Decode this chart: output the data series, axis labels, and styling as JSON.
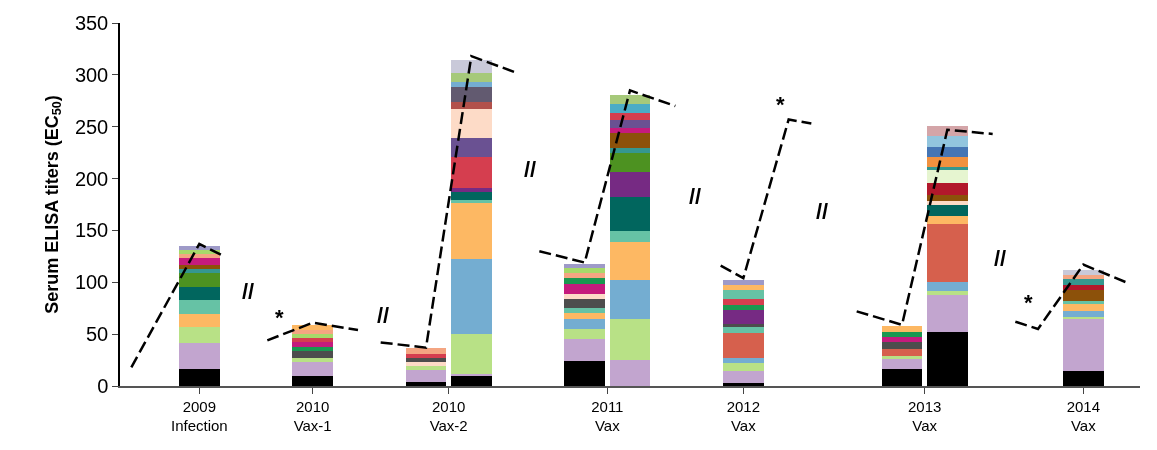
{
  "chart_data": {
    "type": "bar",
    "stacked": true,
    "ylabel": "Serum ELISA titers (EC$_{50}$)",
    "categories": [
      null,
      null,
      null,
      "2009\nInfection",
      null,
      null,
      null,
      null,
      "2010\nVax-1",
      null,
      null,
      null,
      null,
      null,
      "2010\nVax-2",
      null,
      null,
      null,
      null,
      null,
      null,
      "2011\nVax",
      null,
      null,
      null,
      null,
      null,
      "2012\nVax",
      null,
      null,
      null,
      null,
      null,
      null,
      null,
      "2013\nVax",
      null,
      null,
      null,
      null,
      null,
      null,
      "2014\nVax",
      null,
      null
    ],
    "ylim": [
      0,
      350
    ],
    "yticks": [
      0,
      50,
      100,
      150,
      200,
      250,
      300,
      350
    ],
    "series": [
      {
        "values": [
          null,
          null,
          null,
          16,
          null,
          null,
          null,
          null,
          10,
          null,
          null,
          null,
          null,
          4,
          null,
          10,
          null,
          null,
          null,
          null,
          24,
          null,
          25,
          null,
          null,
          null,
          null,
          3,
          null,
          null,
          null,
          null,
          null,
          null,
          16,
          null,
          52,
          null,
          null,
          null,
          null,
          null,
          14,
          null,
          null
        ],
        "colors": [
          null,
          null,
          null,
          "#000000",
          null,
          null,
          null,
          null,
          "#000000",
          null,
          null,
          null,
          null,
          "#000000",
          null,
          "#000000",
          null,
          null,
          null,
          null,
          "#000000",
          null,
          "#c2a5cf",
          null,
          null,
          null,
          null,
          "#000000",
          null,
          null,
          null,
          null,
          null,
          null,
          "#000000",
          null,
          "#000000",
          null,
          null,
          null,
          null,
          null,
          "#000000",
          null,
          null
        ]
      },
      {
        "values": [
          null,
          null,
          null,
          25,
          null,
          null,
          null,
          null,
          13,
          null,
          null,
          null,
          null,
          11,
          null,
          2,
          null,
          null,
          null,
          null,
          21,
          null,
          40,
          null,
          null,
          null,
          null,
          11,
          null,
          null,
          null,
          null,
          null,
          null,
          10,
          null,
          36,
          null,
          null,
          null,
          null,
          null,
          51,
          null,
          null
        ],
        "colors": [
          null,
          null,
          null,
          "#c2a5cf",
          null,
          null,
          null,
          null,
          "#c2a5cf",
          null,
          null,
          null,
          null,
          "#c2a5cf",
          null,
          "#c2a5cf",
          null,
          null,
          null,
          null,
          "#c2a5cf",
          null,
          "#b8e186",
          null,
          null,
          null,
          null,
          "#c2a5cf",
          null,
          null,
          null,
          null,
          null,
          null,
          "#c2a5cf",
          null,
          "#c2a5cf",
          null,
          null,
          null,
          null,
          null,
          "#c2a5cf",
          null,
          null
        ]
      },
      {
        "values": [
          null,
          null,
          null,
          16,
          null,
          null,
          null,
          null,
          4,
          null,
          null,
          null,
          null,
          4,
          null,
          38,
          null,
          null,
          null,
          null,
          10,
          null,
          37,
          null,
          null,
          null,
          null,
          8,
          null,
          null,
          null,
          null,
          null,
          null,
          3,
          null,
          4,
          null,
          null,
          null,
          null,
          null,
          2,
          null,
          null
        ],
        "colors": [
          null,
          null,
          null,
          "#b8e186",
          null,
          null,
          null,
          null,
          "#b8e186",
          null,
          null,
          null,
          null,
          "#b8e186",
          null,
          "#b8e186",
          null,
          null,
          null,
          null,
          "#b8e186",
          null,
          "#74add1",
          null,
          null,
          null,
          null,
          "#b8e186",
          null,
          null,
          null,
          null,
          null,
          null,
          "#b8e186",
          null,
          "#b8e186",
          null,
          null,
          null,
          null,
          null,
          "#b8e186",
          null,
          null
        ]
      },
      {
        "values": [
          null,
          null,
          null,
          12,
          null,
          null,
          null,
          null,
          7,
          null,
          null,
          null,
          null,
          4,
          null,
          72,
          null,
          null,
          null,
          null,
          10,
          null,
          37,
          null,
          null,
          null,
          null,
          5,
          null,
          null,
          null,
          null,
          null,
          null,
          7,
          null,
          8,
          null,
          null,
          null,
          null,
          null,
          5,
          null,
          null
        ],
        "colors": [
          null,
          null,
          null,
          "#fdb863",
          null,
          null,
          null,
          null,
          "#4d4d4d",
          null,
          null,
          null,
          null,
          "#fddbc7",
          null,
          "#74add1",
          null,
          null,
          null,
          null,
          "#74add1",
          null,
          "#fdb863",
          null,
          null,
          null,
          null,
          "#74add1",
          null,
          null,
          null,
          null,
          null,
          null,
          "#d6604d",
          null,
          "#74add1",
          null,
          null,
          null,
          null,
          null,
          "#74add1",
          null,
          null
        ]
      },
      {
        "values": [
          null,
          null,
          null,
          14,
          null,
          null,
          null,
          null,
          4,
          null,
          null,
          null,
          null,
          4,
          null,
          54,
          null,
          null,
          null,
          null,
          5,
          null,
          10,
          null,
          null,
          null,
          null,
          24,
          null,
          null,
          null,
          null,
          null,
          null,
          6,
          null,
          56,
          null,
          null,
          null,
          null,
          null,
          7,
          null,
          null
        ],
        "colors": [
          null,
          null,
          null,
          "#66c2a5",
          null,
          null,
          null,
          null,
          "#1a9850",
          null,
          null,
          null,
          null,
          "#4d4d4d",
          null,
          "#fdb863",
          null,
          null,
          null,
          null,
          "#fdb863",
          null,
          "#66c2a5",
          null,
          null,
          null,
          null,
          "#d6604d",
          null,
          null,
          null,
          null,
          null,
          null,
          "#4d4d4d",
          null,
          "#d6604d",
          null,
          null,
          null,
          null,
          null,
          "#fdb863",
          null,
          null
        ]
      },
      {
        "values": [
          null,
          null,
          null,
          12,
          null,
          null,
          null,
          null,
          4,
          null,
          null,
          null,
          null,
          4,
          null,
          3,
          null,
          null,
          null,
          null,
          5,
          null,
          33,
          null,
          null,
          null,
          null,
          6,
          null,
          null,
          null,
          null,
          null,
          null,
          5,
          null,
          8,
          null,
          null,
          null,
          null,
          null,
          3,
          null,
          null
        ],
        "colors": [
          null,
          null,
          null,
          "#01665e",
          null,
          null,
          null,
          null,
          "#c51b7d",
          null,
          null,
          null,
          null,
          "#d53e4f",
          null,
          "#66c2a5",
          null,
          null,
          null,
          null,
          "#66c2a5",
          null,
          "#01665e",
          null,
          null,
          null,
          null,
          "#66c2a5",
          null,
          null,
          null,
          null,
          null,
          null,
          "#c51b7d",
          null,
          "#fdb863",
          null,
          null,
          null,
          null,
          null,
          "#66c2a5",
          null,
          null
        ]
      },
      {
        "values": [
          null,
          null,
          null,
          14,
          null,
          null,
          null,
          null,
          4,
          null,
          null,
          null,
          null,
          6,
          null,
          8,
          null,
          null,
          null,
          null,
          9,
          null,
          24,
          null,
          null,
          null,
          null,
          3,
          null,
          null,
          null,
          null,
          null,
          null,
          5,
          null,
          11,
          null,
          null,
          null,
          null,
          null,
          11,
          null,
          null
        ],
        "colors": [
          null,
          null,
          null,
          "#4d9221",
          null,
          null,
          null,
          null,
          "#d53e4f",
          null,
          null,
          null,
          null,
          "#f4a582",
          null,
          "#01665e",
          null,
          null,
          null,
          null,
          "#4d4d4d",
          null,
          "#762a83",
          null,
          null,
          null,
          null,
          "#4d4d4d",
          null,
          null,
          null,
          null,
          null,
          null,
          "#1a9850",
          null,
          "#01665e",
          null,
          null,
          null,
          null,
          null,
          "#8c510a",
          null,
          null
        ]
      },
      {
        "values": [
          null,
          null,
          null,
          4,
          null,
          null,
          null,
          null,
          4,
          null,
          null,
          null,
          null,
          null,
          null,
          4,
          null,
          null,
          null,
          null,
          5,
          null,
          19,
          null,
          null,
          null,
          null,
          13,
          null,
          null,
          null,
          null,
          null,
          null,
          6,
          null,
          3,
          null,
          null,
          null,
          null,
          null,
          4,
          null,
          null
        ],
        "colors": [
          null,
          null,
          null,
          "#35978f",
          null,
          null,
          null,
          null,
          "#a6d96a",
          null,
          null,
          null,
          null,
          null,
          null,
          "#762a83",
          null,
          null,
          null,
          null,
          "#fddbc7",
          null,
          "#4d9221",
          null,
          null,
          null,
          null,
          "#762a83",
          null,
          null,
          null,
          null,
          null,
          null,
          "#fdb863",
          null,
          "#fddbc7",
          null,
          null,
          null,
          null,
          null,
          "#b2182b",
          null,
          null
        ]
      },
      {
        "values": [
          null,
          null,
          null,
          4,
          null,
          null,
          null,
          null,
          4,
          null,
          null,
          null,
          null,
          null,
          null,
          30,
          null,
          null,
          null,
          null,
          9,
          null,
          4,
          null,
          null,
          null,
          null,
          5,
          null,
          null,
          null,
          null,
          null,
          null,
          null,
          null,
          6,
          null,
          null,
          null,
          null,
          null,
          6,
          null,
          null
        ],
        "colors": [
          null,
          null,
          null,
          "#8c510a",
          null,
          null,
          null,
          null,
          "#f4a582",
          null,
          null,
          null,
          null,
          null,
          null,
          "#d53e4f",
          null,
          null,
          null,
          null,
          "#c51b7d",
          null,
          "#35978f",
          null,
          null,
          null,
          null,
          "#1a9850",
          null,
          null,
          null,
          null,
          null,
          null,
          null,
          null,
          "#8c510a",
          null,
          null,
          null,
          null,
          null,
          "#35978f",
          null,
          null
        ]
      },
      {
        "values": [
          null,
          null,
          null,
          6,
          null,
          null,
          null,
          null,
          5,
          null,
          null,
          null,
          null,
          null,
          null,
          18,
          null,
          null,
          null,
          null,
          6,
          null,
          15,
          null,
          null,
          null,
          null,
          6,
          null,
          null,
          null,
          null,
          null,
          null,
          null,
          null,
          12,
          null,
          null,
          null,
          null,
          null,
          4,
          null,
          null
        ],
        "colors": [
          null,
          null,
          null,
          "#c51b7d",
          null,
          null,
          null,
          null,
          "#fdb863",
          null,
          null,
          null,
          null,
          null,
          null,
          "#6a5192",
          null,
          null,
          null,
          null,
          "#1a9850",
          null,
          "#8c510a",
          null,
          null,
          null,
          null,
          "#d53e4f",
          null,
          null,
          null,
          null,
          null,
          null,
          null,
          null,
          "#b2182b",
          null,
          null,
          null,
          null,
          null,
          "#f4a582",
          null,
          null
        ]
      },
      {
        "values": [
          null,
          null,
          null,
          4,
          null,
          null,
          null,
          null,
          null,
          null,
          null,
          null,
          null,
          null,
          null,
          28,
          null,
          null,
          null,
          null,
          5,
          null,
          5,
          null,
          null,
          null,
          null,
          9,
          null,
          null,
          null,
          null,
          null,
          null,
          null,
          null,
          12,
          null,
          null,
          null,
          null,
          null,
          5,
          null,
          null
        ],
        "colors": [
          null,
          null,
          null,
          "#f4a582",
          null,
          null,
          null,
          null,
          null,
          null,
          null,
          null,
          null,
          null,
          null,
          "#fddbc7",
          null,
          null,
          null,
          null,
          "#f4a582",
          null,
          "#c51b7d",
          null,
          null,
          null,
          null,
          "#66c2a5",
          null,
          null,
          null,
          null,
          null,
          null,
          null,
          null,
          "#e6f5d0",
          null,
          null,
          null,
          null,
          null,
          "#c9c9d9",
          null,
          null
        ]
      },
      {
        "values": [
          null,
          null,
          null,
          4,
          null,
          null,
          null,
          null,
          null,
          null,
          null,
          null,
          null,
          null,
          null,
          7,
          null,
          null,
          null,
          null,
          5,
          null,
          7,
          null,
          null,
          null,
          null,
          4,
          null,
          null,
          null,
          null,
          null,
          null,
          null,
          null,
          3,
          null,
          null,
          null,
          null,
          null,
          null,
          null,
          null
        ],
        "colors": [
          null,
          null,
          null,
          "#a6d96a",
          null,
          null,
          null,
          null,
          null,
          null,
          null,
          null,
          null,
          null,
          null,
          "#b2514b",
          null,
          null,
          null,
          null,
          "#a6d96a",
          null,
          "#6a5192",
          null,
          null,
          null,
          null,
          "#fdb863",
          null,
          null,
          null,
          null,
          null,
          null,
          null,
          null,
          "#35978f",
          null,
          null,
          null,
          null,
          null,
          null,
          null,
          null
        ]
      },
      {
        "values": [
          null,
          null,
          null,
          4,
          null,
          null,
          null,
          null,
          null,
          null,
          null,
          null,
          null,
          null,
          null,
          14,
          null,
          null,
          null,
          null,
          4,
          null,
          7,
          null,
          null,
          null,
          null,
          5,
          null,
          null,
          null,
          null,
          null,
          null,
          null,
          null,
          10,
          null,
          null,
          null,
          null,
          null,
          null,
          null,
          null
        ],
        "colors": [
          null,
          null,
          null,
          "#9e9ac8",
          null,
          null,
          null,
          null,
          null,
          null,
          null,
          null,
          null,
          null,
          null,
          "#625a70",
          null,
          null,
          null,
          null,
          "#9e9ac8",
          null,
          "#d53e4f",
          null,
          null,
          null,
          null,
          "#9e9ac8",
          null,
          null,
          null,
          null,
          null,
          null,
          null,
          null,
          "#f1913f",
          null,
          null,
          null,
          null,
          null,
          null,
          null,
          null
        ]
      },
      {
        "values": [
          null,
          null,
          null,
          null,
          null,
          null,
          null,
          null,
          null,
          null,
          null,
          null,
          null,
          null,
          null,
          5,
          null,
          null,
          null,
          null,
          null,
          null,
          9,
          null,
          null,
          null,
          null,
          null,
          null,
          null,
          null,
          null,
          null,
          null,
          null,
          null,
          9,
          null,
          null,
          null,
          null,
          null,
          null,
          null,
          null
        ],
        "colors": [
          null,
          null,
          null,
          null,
          null,
          null,
          null,
          null,
          null,
          null,
          null,
          null,
          null,
          null,
          null,
          "#74add1",
          null,
          null,
          null,
          null,
          null,
          null,
          "#4bacc6",
          null,
          null,
          null,
          null,
          null,
          null,
          null,
          null,
          null,
          null,
          null,
          null,
          null,
          "#4575b4",
          null,
          null,
          null,
          null,
          null,
          null,
          null,
          null
        ]
      },
      {
        "values": [
          null,
          null,
          null,
          null,
          null,
          null,
          null,
          null,
          null,
          null,
          null,
          null,
          null,
          null,
          null,
          9,
          null,
          null,
          null,
          null,
          null,
          null,
          9,
          null,
          null,
          null,
          null,
          null,
          null,
          null,
          null,
          null,
          null,
          null,
          null,
          null,
          11,
          null,
          null,
          null,
          null,
          null,
          null,
          null,
          null
        ],
        "colors": [
          null,
          null,
          null,
          null,
          null,
          null,
          null,
          null,
          null,
          null,
          null,
          null,
          null,
          null,
          null,
          "#a6c97a",
          null,
          null,
          null,
          null,
          null,
          null,
          "#a6c97a",
          null,
          null,
          null,
          null,
          null,
          null,
          null,
          null,
          null,
          null,
          null,
          null,
          null,
          "#92c5de",
          null,
          null,
          null,
          null,
          null,
          null,
          null,
          null
        ]
      },
      {
        "values": [
          null,
          null,
          null,
          null,
          null,
          null,
          null,
          null,
          null,
          null,
          null,
          null,
          null,
          null,
          null,
          12,
          null,
          null,
          null,
          null,
          null,
          null,
          null,
          null,
          null,
          null,
          null,
          null,
          null,
          null,
          null,
          null,
          null,
          null,
          null,
          null,
          10,
          null,
          null,
          null,
          null,
          null,
          null,
          null,
          null
        ],
        "colors": [
          null,
          null,
          null,
          null,
          null,
          null,
          null,
          null,
          null,
          null,
          null,
          null,
          null,
          null,
          null,
          "#c9c9d9",
          null,
          null,
          null,
          null,
          null,
          null,
          null,
          null,
          null,
          null,
          null,
          null,
          null,
          null,
          null,
          null,
          null,
          null,
          null,
          null,
          "#d4a5a8",
          null,
          null,
          null,
          null,
          null,
          null,
          null,
          null
        ]
      },
      {
        "type": "line",
        "line_style": "dashed",
        "color": "#000000",
        "values": [
          18,
          null,
          null,
          137,
          126,
          null,
          null,
          null,
          null,
          null,
          null,
          null,
          null,
          null,
          null,
          null,
          null,
          null,
          null,
          null,
          null,
          null,
          null,
          null,
          null,
          null,
          null,
          null,
          null,
          null,
          null,
          null,
          null,
          null,
          null,
          null,
          null,
          null,
          null,
          null,
          null,
          null,
          null,
          null,
          null
        ]
      },
      {
        "type": "line",
        "line_style": "dashed",
        "color": "#000000",
        "values": [
          null,
          null,
          null,
          null,
          null,
          null,
          44,
          null,
          61,
          null,
          54,
          null,
          null,
          null,
          null,
          null,
          null,
          null,
          null,
          null,
          null,
          null,
          null,
          null,
          null,
          null,
          null,
          null,
          null,
          null,
          null,
          null,
          null,
          null,
          null,
          null,
          null,
          null,
          null,
          null,
          null,
          null,
          null,
          null,
          null
        ]
      },
      {
        "type": "line",
        "line_style": "dashed",
        "color": "#000000",
        "values": [
          null,
          null,
          null,
          null,
          null,
          null,
          null,
          null,
          null,
          null,
          null,
          42,
          null,
          37,
          null,
          318,
          null,
          302,
          null,
          null,
          null,
          null,
          null,
          null,
          null,
          null,
          null,
          null,
          null,
          null,
          null,
          null,
          null,
          null,
          null,
          null,
          null,
          null,
          null,
          null,
          null,
          null,
          null,
          null,
          null
        ]
      },
      {
        "type": "line",
        "line_style": "dashed",
        "color": "#000000",
        "values": [
          null,
          null,
          null,
          null,
          null,
          null,
          null,
          null,
          null,
          null,
          null,
          null,
          null,
          null,
          null,
          null,
          null,
          null,
          130,
          null,
          119,
          null,
          285,
          null,
          270,
          null,
          null,
          null,
          null,
          null,
          null,
          null,
          null,
          null,
          null,
          null,
          null,
          null,
          null,
          null,
          null,
          null,
          null,
          null,
          null
        ]
      },
      {
        "type": "line",
        "line_style": "dashed",
        "color": "#000000",
        "values": [
          null,
          null,
          null,
          null,
          null,
          null,
          null,
          null,
          null,
          null,
          null,
          null,
          null,
          null,
          null,
          null,
          null,
          null,
          null,
          null,
          null,
          null,
          null,
          null,
          null,
          null,
          116,
          104,
          null,
          257,
          253,
          null,
          null,
          null,
          null,
          null,
          null,
          null,
          null,
          null,
          null,
          null,
          null,
          null,
          null
        ]
      },
      {
        "type": "line",
        "line_style": "dashed",
        "color": "#000000",
        "values": [
          null,
          null,
          null,
          null,
          null,
          null,
          null,
          null,
          null,
          null,
          null,
          null,
          null,
          null,
          null,
          null,
          null,
          null,
          null,
          null,
          null,
          null,
          null,
          null,
          null,
          null,
          null,
          null,
          null,
          null,
          null,
          null,
          72,
          null,
          59,
          null,
          247,
          null,
          243,
          null,
          null,
          null,
          null,
          null,
          null
        ]
      },
      {
        "type": "line",
        "line_style": "dashed",
        "color": "#000000",
        "values": [
          null,
          null,
          null,
          null,
          null,
          null,
          null,
          null,
          null,
          null,
          null,
          null,
          null,
          null,
          null,
          null,
          null,
          null,
          null,
          null,
          null,
          null,
          null,
          null,
          null,
          null,
          null,
          null,
          null,
          null,
          null,
          null,
          null,
          null,
          null,
          null,
          null,
          null,
          null,
          62,
          55,
          null,
          117,
          null,
          99
        ]
      }
    ],
    "annotations": [
      "*",
      "*",
      "*",
      "//",
      "//",
      "//",
      "//",
      "//",
      "//"
    ]
  }
}
